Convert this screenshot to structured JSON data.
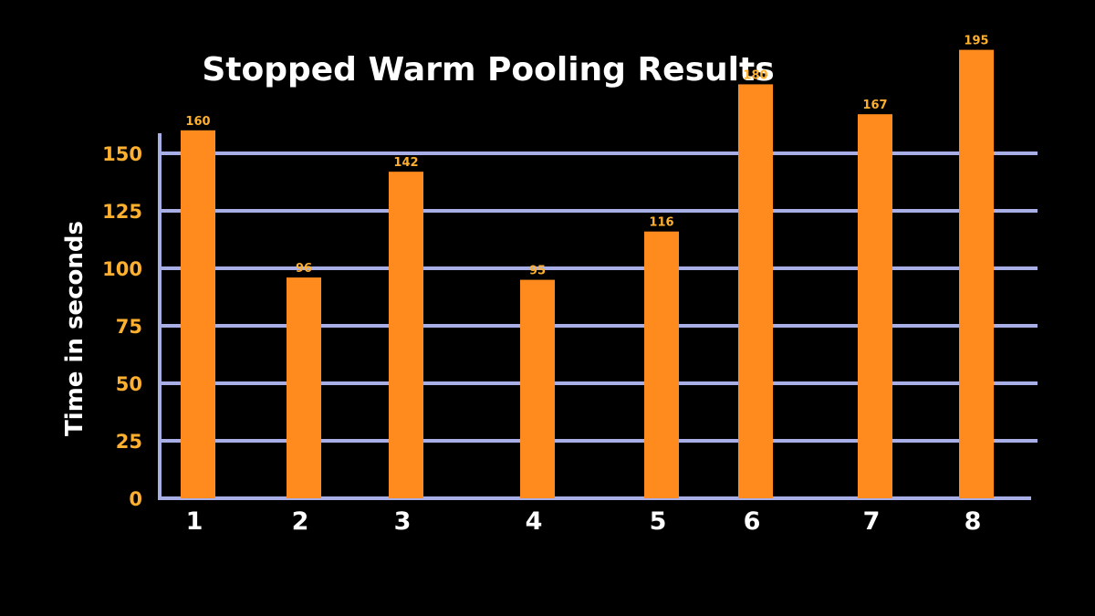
{
  "chart_data": {
    "type": "bar",
    "title": "Stopped Warm Pooling Results",
    "xlabel": "",
    "ylabel": "Time in seconds",
    "categories": [
      "1",
      "2",
      "3",
      "4",
      "5",
      "6",
      "7",
      "8"
    ],
    "values": [
      160,
      96,
      142,
      95,
      116,
      180,
      167,
      195
    ],
    "value_labels": [
      "160",
      "96",
      "142",
      "95",
      "116",
      "180",
      "167",
      "195"
    ],
    "ylim": [
      0,
      160
    ],
    "yticks": [
      "0",
      "25",
      "50",
      "75",
      "100",
      "125",
      "150"
    ],
    "grid": true,
    "legend": "none"
  },
  "colors": {
    "background": "#000000",
    "bar": "#FF8A1E",
    "grid": "#A8AEE6",
    "axis": "#A8AEE6",
    "ytick_text": "#FFB02E",
    "value_text": "#FFB02E",
    "title_text": "#FFFFFF",
    "xtick_text": "#FFFFFF",
    "ylabel_text": "#FFFFFF"
  }
}
